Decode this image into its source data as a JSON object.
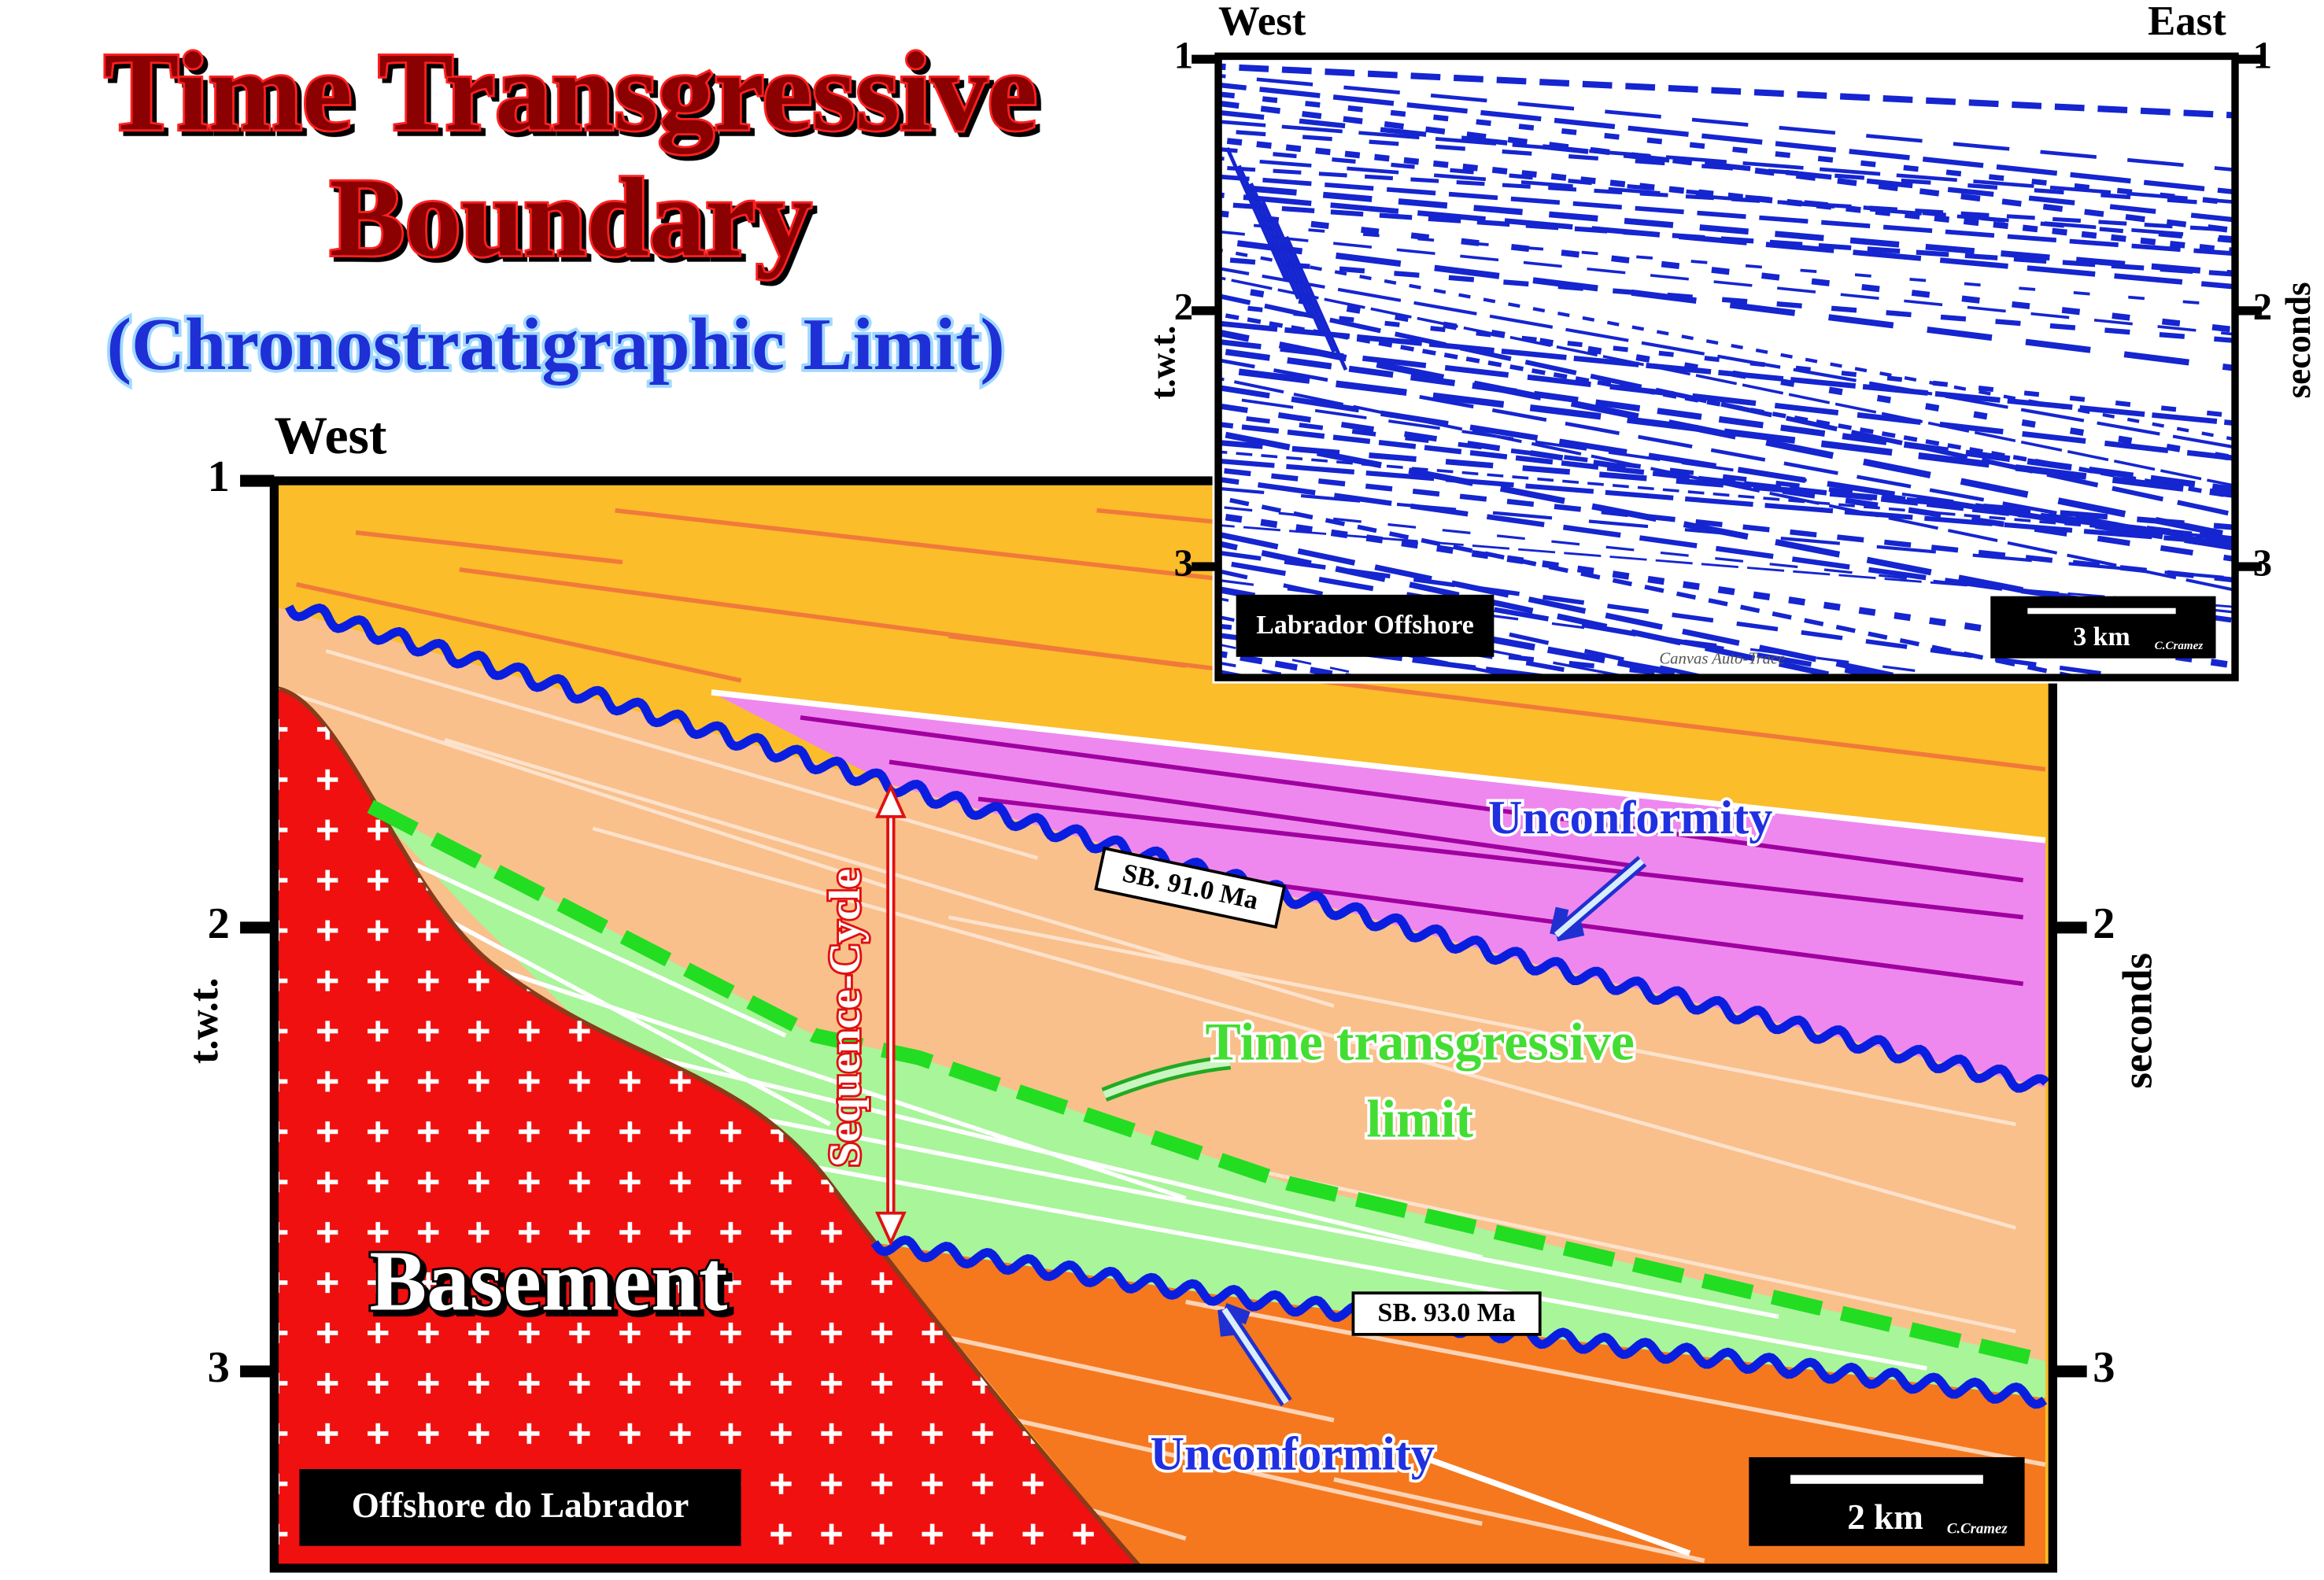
{
  "header": {
    "title_lines": [
      "Time Transgressive",
      "Boundary"
    ],
    "subtitle": "(Chronostratigraphic Limit)"
  },
  "section": {
    "direction": "West",
    "y_label": "t.w.t.",
    "y2_label": "seconds",
    "ticks": [
      1,
      2,
      3
    ],
    "labels": {
      "basement": "Basement",
      "sequence_cycle": "Sequence-Cycle",
      "sb_upper": "SB. 91.0 Ma",
      "sb_lower": "SB. 93.0 Ma",
      "unconformity_upper": "Unconformity",
      "unconformity_lower": "Unconformity",
      "ttl_line1": "Time transgressive",
      "ttl_line2": "limit"
    },
    "location": "Offshore do Labrador",
    "scale": "2 km",
    "credit": "C.Cramez"
  },
  "inset": {
    "west": "West",
    "east": "East",
    "y_label": "t.w.t.",
    "y2_label": "seconds",
    "ticks": [
      1,
      2,
      3
    ],
    "location": "Labrador Offshore",
    "scale": "3 km",
    "credit": "C.Cramez",
    "watermark": "Canvas Auto-Trace"
  }
}
